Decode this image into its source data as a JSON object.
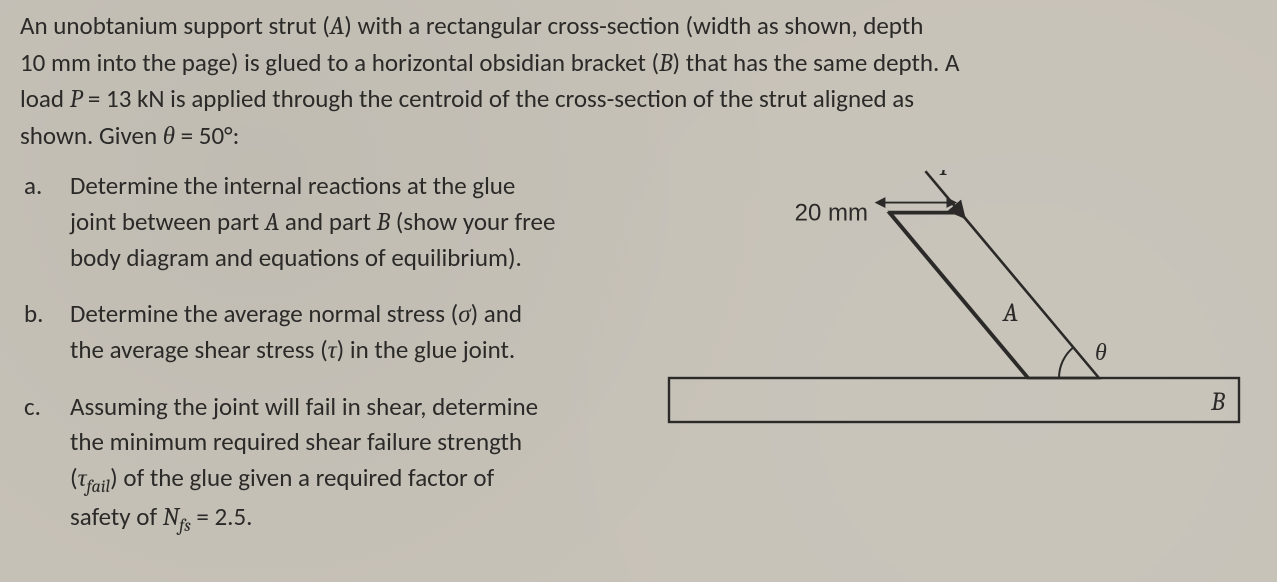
{
  "intro": {
    "l1a": "An unobtanium support strut (",
    "l1b": ") with a rectangular cross-section (width as shown, depth",
    "l2a": "10 mm into the page) is glued to a horizontal obsidian bracket (",
    "l2b": ") that has the same depth. A",
    "l3a": "load ",
    "l3b": " = 13 kN is applied through the centroid of the cross-section of the strut aligned as",
    "l4a": "shown. Given ",
    "l4b": " = 50°:",
    "A": "A",
    "B": "B",
    "P": "P",
    "theta": "θ"
  },
  "parts": {
    "a": {
      "letter": "a.",
      "t1": "Determine the internal reactions at the glue",
      "t2a": "joint between part ",
      "t2b": " and part ",
      "t2c": " (show your free",
      "t3": "body diagram and equations of equilibrium).",
      "A": "A",
      "B": "B"
    },
    "b": {
      "letter": "b.",
      "t1a": "Determine the average normal stress (",
      "t1b": ") and",
      "t2a": "the average shear stress (",
      "t2b": ") in the glue joint.",
      "sigma": "σ",
      "tau": "τ"
    },
    "c": {
      "letter": "c.",
      "t1": "Assuming the joint will fail in shear, determine",
      "t2": "the minimum required shear failure strength",
      "t3a": "(",
      "t3b": ") of the glue given a required factor of",
      "t4a": "safety of ",
      "t4b": " = 2.5.",
      "tau": "τ",
      "fail": "fail",
      "N": "N",
      "fs": "fs"
    }
  },
  "diagram": {
    "width_label": "20 mm",
    "A": "A",
    "B": "B",
    "P": "P",
    "theta": "θ",
    "stroke": "#2b2a28",
    "fill": "#c7c2b8",
    "stroke_width": 2.4,
    "font_size": 26,
    "label_font": "italic 26px Cambria, Georgia, serif",
    "dim_font": "24px Segoe UI, Arial, sans-serif",
    "theta_deg": 50,
    "strut_width_mm": 20,
    "depth_mm": 10,
    "load_kN": 13,
    "Nfs": 2.5
  }
}
